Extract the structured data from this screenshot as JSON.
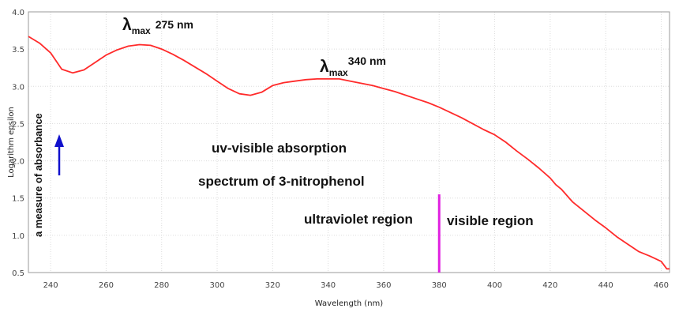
{
  "chart_data": {
    "type": "line",
    "xlabel": "Wavelength (nm)",
    "ylabel": "Logarithm epsilon",
    "xlim": [
      232,
      463
    ],
    "ylim": [
      0.5,
      4.0
    ],
    "xticks": [
      240,
      260,
      280,
      300,
      320,
      340,
      360,
      380,
      400,
      420,
      440,
      460
    ],
    "yticks": [
      0.5,
      1.0,
      1.5,
      2.0,
      2.5,
      3.0,
      3.5,
      4.0
    ],
    "grid": true,
    "line_color": "#ff2a2a",
    "series": [
      {
        "x": [
          232,
          236,
          240,
          244,
          248,
          252,
          256,
          260,
          264,
          268,
          272,
          276,
          280,
          284,
          288,
          292,
          296,
          300,
          304,
          308,
          312,
          316,
          320,
          324,
          328,
          332,
          336,
          340,
          344,
          348,
          352,
          356,
          360,
          364,
          368,
          372,
          376,
          380,
          384,
          388,
          392,
          396,
          400,
          404,
          408,
          412,
          416,
          420,
          422,
          424,
          428,
          432,
          436,
          440,
          444,
          448,
          452,
          456,
          460,
          462,
          463
        ],
        "y": [
          3.67,
          3.58,
          3.45,
          3.23,
          3.18,
          3.22,
          3.32,
          3.42,
          3.49,
          3.54,
          3.56,
          3.55,
          3.5,
          3.43,
          3.35,
          3.26,
          3.17,
          3.07,
          2.97,
          2.9,
          2.88,
          2.92,
          3.01,
          3.05,
          3.07,
          3.09,
          3.1,
          3.1,
          3.1,
          3.07,
          3.04,
          3.01,
          2.97,
          2.93,
          2.88,
          2.83,
          2.78,
          2.72,
          2.65,
          2.58,
          2.5,
          2.42,
          2.35,
          2.25,
          2.13,
          2.02,
          1.9,
          1.77,
          1.68,
          1.62,
          1.45,
          1.33,
          1.21,
          1.1,
          0.98,
          0.88,
          0.78,
          0.72,
          0.65,
          0.55,
          0.55
        ]
      }
    ],
    "annotations": {
      "lambda_symbol": "λ",
      "max_sub": "max",
      "peak1_value": "275 nm",
      "peak2_value": "340 nm",
      "title_line1": "uv-visible absorption",
      "title_line2": "spectrum of 3-nitrophenol",
      "uv_region": "ultraviolet region",
      "vis_region": "visible region",
      "absorbance_note": "a measure of absorbance",
      "boundary_x": 380,
      "boundary_color": "#e020e0",
      "arrow_color": "#1010cc"
    }
  }
}
